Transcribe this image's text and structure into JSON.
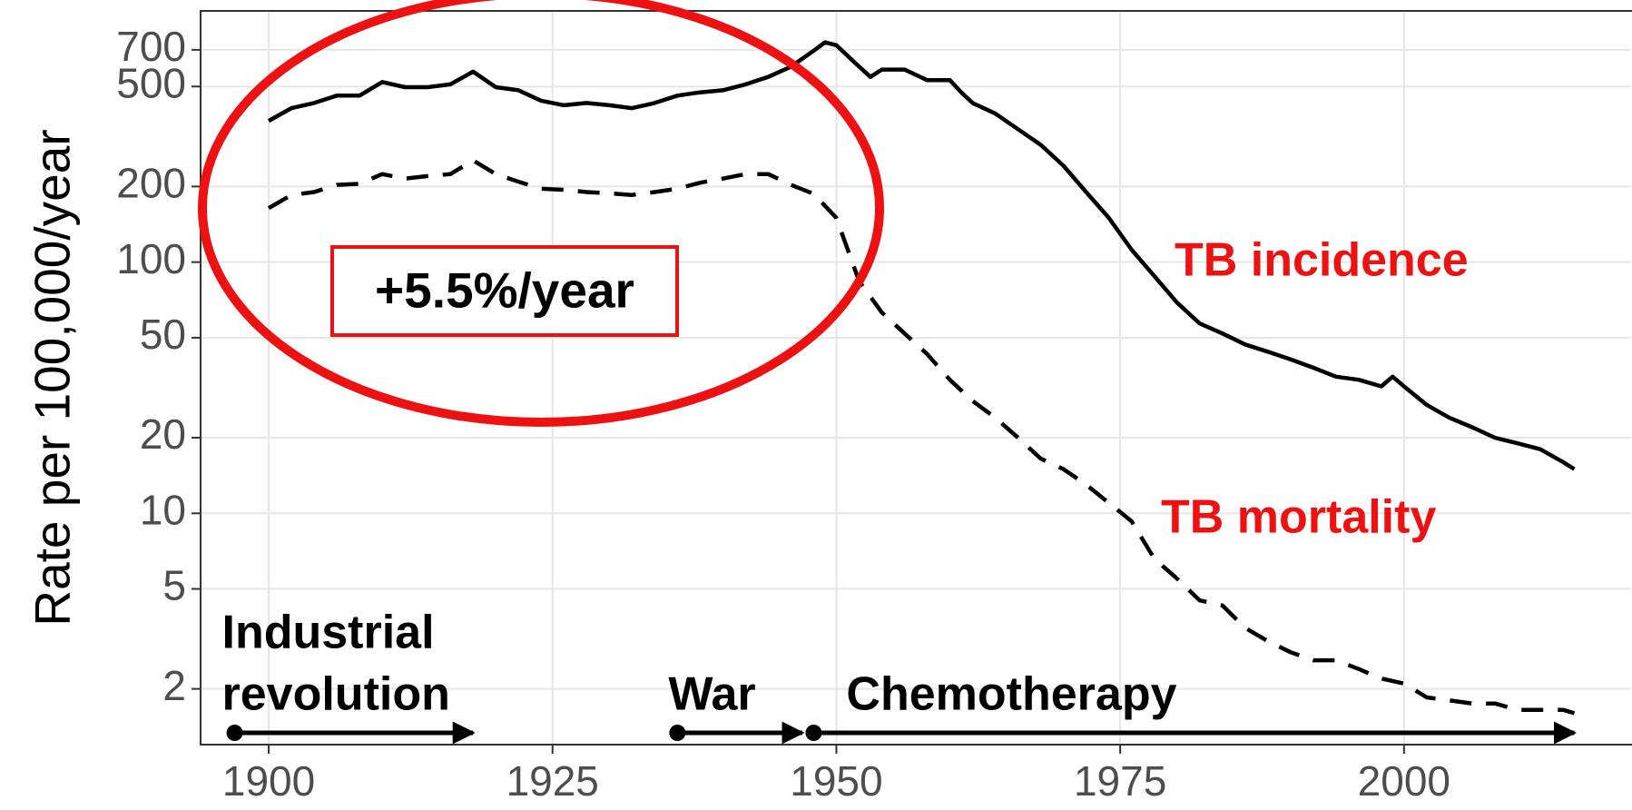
{
  "chart_data": {
    "type": "line",
    "y_label": "Rate per 100,000/year",
    "log_y": true,
    "grid": true,
    "xlim": [
      1894,
      2020
    ],
    "xticks": [
      1900,
      1925,
      1950,
      1975,
      2000
    ],
    "ylim": [
      1.2,
      1000
    ],
    "yticks": [
      2,
      5,
      10,
      20,
      50,
      100,
      200,
      500,
      700
    ],
    "series": [
      {
        "name": "TB incidence",
        "color": "#000000",
        "dash": false,
        "label_color": "#ee1111",
        "x": [
          1900,
          1902,
          1904,
          1906,
          1908,
          1910,
          1912,
          1914,
          1916,
          1918,
          1920,
          1922,
          1924,
          1926,
          1928,
          1930,
          1932,
          1934,
          1936,
          1938,
          1940,
          1942,
          1944,
          1946,
          1948,
          1949,
          1950,
          1952,
          1953,
          1954,
          1956,
          1958,
          1960,
          1961,
          1962,
          1964,
          1966,
          1968,
          1970,
          1972,
          1974,
          1976,
          1978,
          1980,
          1982,
          1984,
          1986,
          1988,
          1990,
          1992,
          1994,
          1996,
          1998,
          1999,
          2000,
          2002,
          2004,
          2006,
          2008,
          2010,
          2012,
          2014,
          2015
        ],
        "values": [
          365,
          410,
          430,
          460,
          460,
          521,
          497,
          497,
          510,
          573,
          497,
          483,
          439,
          421,
          430,
          421,
          410,
          430,
          460,
          474,
          483,
          510,
          546,
          600,
          694,
          750,
          730,
          600,
          546,
          584,
          584,
          530,
          530,
          474,
          430,
          390,
          338,
          293,
          242,
          190,
          150,
          112,
          88,
          69,
          57,
          52,
          47,
          44,
          41,
          38,
          35,
          34,
          32,
          35,
          32,
          27,
          24,
          22,
          20,
          19,
          18,
          16,
          15
        ]
      },
      {
        "name": "TB mortality",
        "color": "#000000",
        "dash": true,
        "label_color": "#ee1111",
        "x": [
          1900,
          1902,
          1904,
          1906,
          1908,
          1910,
          1912,
          1914,
          1916,
          1918,
          1920,
          1922,
          1924,
          1926,
          1928,
          1930,
          1932,
          1934,
          1936,
          1938,
          1940,
          1942,
          1944,
          1946,
          1948,
          1950,
          1951,
          1952,
          1954,
          1956,
          1958,
          1960,
          1962,
          1964,
          1966,
          1968,
          1970,
          1972,
          1974,
          1976,
          1978,
          1980,
          1982,
          1984,
          1986,
          1988,
          1990,
          1992,
          1994,
          1996,
          1998,
          2000,
          2002,
          2004,
          2006,
          2008,
          2010,
          2012,
          2014,
          2015
        ],
        "values": [
          164,
          185,
          190,
          203,
          205,
          224,
          215,
          220,
          224,
          254,
          224,
          209,
          196,
          194,
          190,
          188,
          185,
          190,
          196,
          207,
          215,
          224,
          224,
          203,
          187,
          150,
          112,
          84,
          63,
          52,
          43,
          34,
          28,
          24,
          20,
          16.5,
          15,
          13,
          11,
          9.3,
          6.6,
          5.5,
          4.5,
          4.3,
          3.5,
          3.1,
          2.8,
          2.6,
          2.6,
          2.4,
          2.2,
          2.1,
          1.85,
          1.8,
          1.75,
          1.75,
          1.65,
          1.65,
          1.65,
          1.6
        ]
      }
    ],
    "annotation": "+5.5%/year",
    "periods": [
      {
        "label": [
          "Industrial",
          "revolution"
        ],
        "start": 1897,
        "end": 1918
      },
      {
        "label": [
          "War"
        ],
        "start": 1936,
        "end": 1947
      },
      {
        "label": [
          "Chemotherapy"
        ],
        "start": 1948,
        "end": 2015
      }
    ]
  }
}
